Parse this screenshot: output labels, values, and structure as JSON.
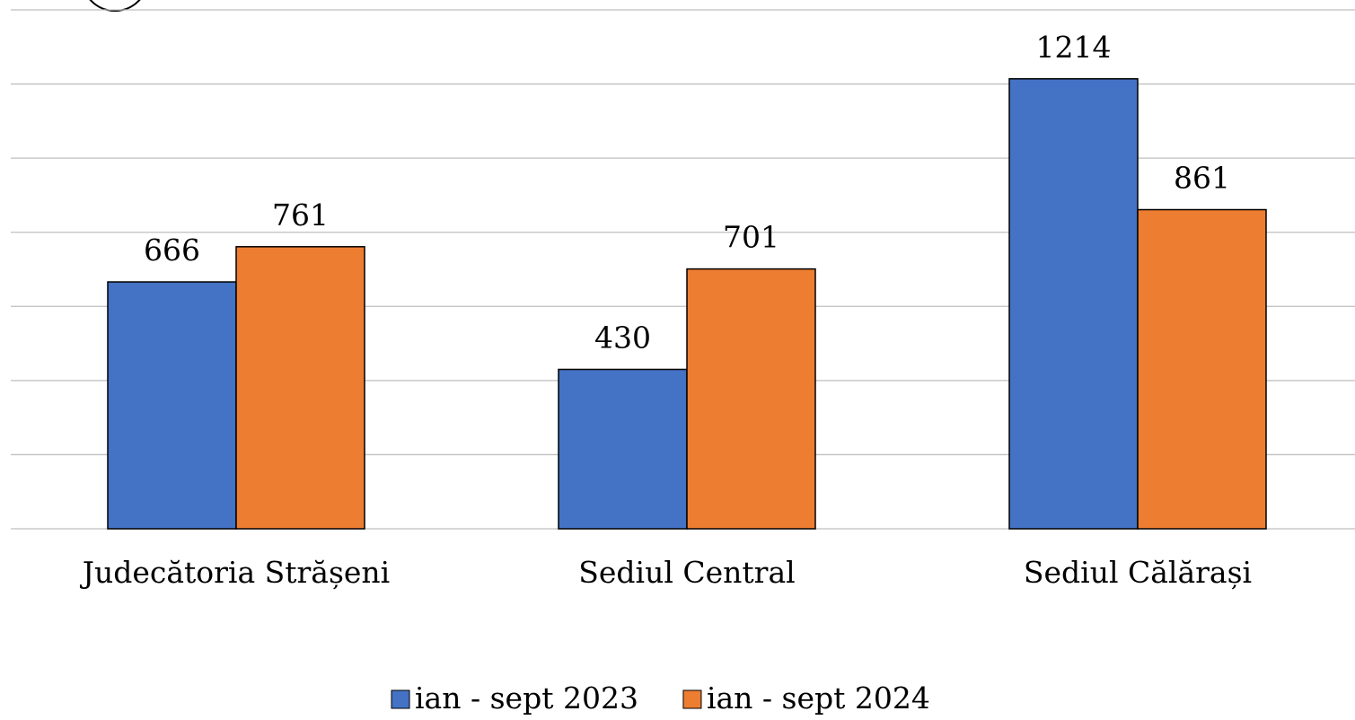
{
  "chart_data": {
    "type": "bar",
    "categories": [
      "Judecătoria Strășeni",
      "Sediul Central",
      "Sediul Călărași"
    ],
    "series": [
      {
        "name": "ian - sept 2023",
        "color": "#4472c4",
        "values": [
          666,
          430,
          1214
        ]
      },
      {
        "name": "ian - sept 2024",
        "color": "#ed7d31",
        "values": [
          761,
          701,
          861
        ]
      }
    ],
    "ylim": [
      0,
      1400
    ],
    "yticks": [
      0,
      200,
      400,
      600,
      800,
      1000,
      1200,
      1400
    ],
    "grid": true
  }
}
